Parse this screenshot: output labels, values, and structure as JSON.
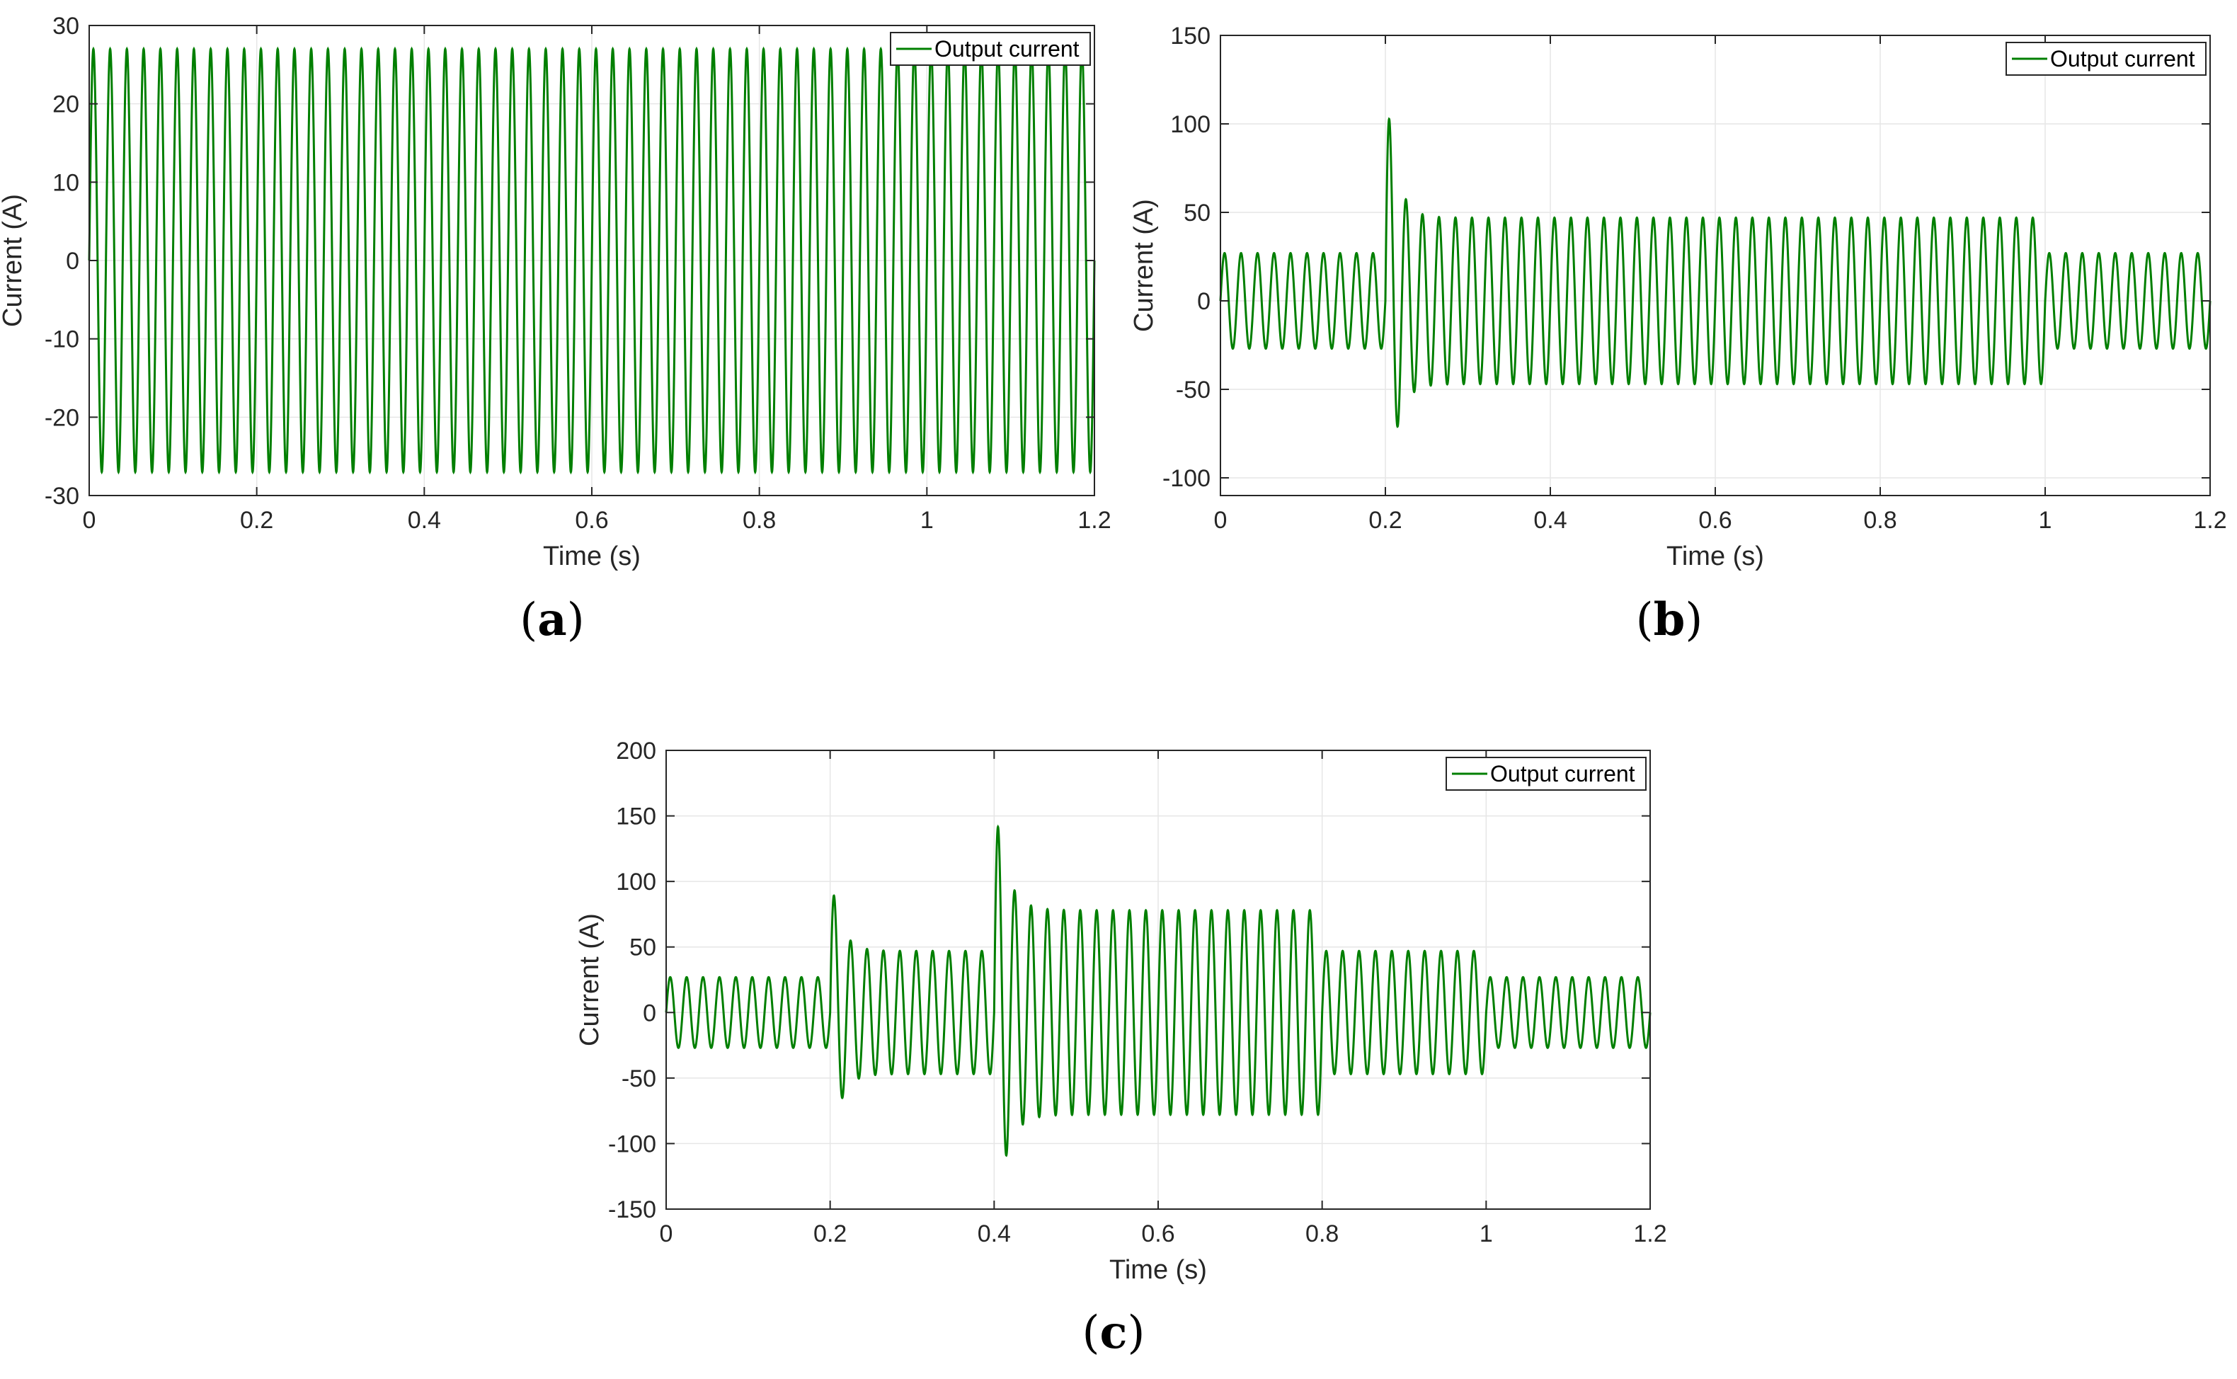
{
  "chart_data": [
    {
      "id": "a",
      "type": "line",
      "caption": {
        "open": "(",
        "letter": "a",
        "close": ")"
      },
      "xlabel": "Time (s)",
      "ylabel": "Current (A)",
      "xlim": [
        0,
        1.2
      ],
      "ylim": [
        -30,
        30
      ],
      "xticks": [
        0,
        0.2,
        0.4,
        0.6,
        0.8,
        1,
        1.2
      ],
      "xtick_labels": [
        "0",
        "0.2",
        "0.4",
        "0.6",
        "0.8",
        "1",
        "1.2"
      ],
      "yticks": [
        30,
        20,
        10,
        0,
        -10,
        -20,
        -30
      ],
      "ytick_labels": [
        "30",
        "20",
        "10",
        "0",
        "-10",
        "-20",
        "-30"
      ],
      "grid": true,
      "legend": {
        "label": "Output current",
        "position": "top-right"
      },
      "color": "#007f00",
      "frequency_hz": 50,
      "series": [
        {
          "name": "Output current",
          "segments": [
            {
              "start": 0,
              "end": 1.2,
              "amplitude": 27
            }
          ],
          "transients": []
        }
      ]
    },
    {
      "id": "b",
      "type": "line",
      "caption": {
        "open": "(",
        "letter": "b",
        "close": ")"
      },
      "xlabel": "Time (s)",
      "ylabel": "Current (A)",
      "xlim": [
        0,
        1.2
      ],
      "ylim": [
        -110,
        150
      ],
      "xticks": [
        0,
        0.2,
        0.4,
        0.6,
        0.8,
        1,
        1.2
      ],
      "xtick_labels": [
        "0",
        "0.2",
        "0.4",
        "0.6",
        "0.8",
        "1",
        "1.2"
      ],
      "yticks": [
        150,
        100,
        50,
        0,
        -50,
        -100
      ],
      "ytick_labels": [
        "150",
        "100",
        "50",
        "0",
        "-50",
        "-100"
      ],
      "grid": true,
      "legend": {
        "label": "Output current",
        "position": "top-right"
      },
      "color": "#007f00",
      "frequency_hz": 50,
      "series": [
        {
          "name": "Output current",
          "segments": [
            {
              "start": 0,
              "end": 0.2,
              "amplitude": 27
            },
            {
              "start": 0.2,
              "end": 1.0,
              "amplitude": 47
            },
            {
              "start": 1.0,
              "end": 1.2,
              "amplitude": 27
            }
          ],
          "transients": [
            {
              "at": 0.2,
              "extra": 83,
              "decay": 0.012
            }
          ]
        }
      ]
    },
    {
      "id": "c",
      "type": "line",
      "caption": {
        "open": "(",
        "letter": "c",
        "close": ")"
      },
      "xlabel": "Time (s)",
      "ylabel": "Current (A)",
      "xlim": [
        0,
        1.2
      ],
      "ylim": [
        -150,
        200
      ],
      "xticks": [
        0,
        0.2,
        0.4,
        0.6,
        0.8,
        1,
        1.2
      ],
      "xtick_labels": [
        "0",
        "0.2",
        "0.4",
        "0.6",
        "0.8",
        "1",
        "1.2"
      ],
      "yticks": [
        200,
        150,
        100,
        50,
        0,
        -50,
        -100,
        -150
      ],
      "ytick_labels": [
        "200",
        "150",
        "100",
        "50",
        "0",
        "-50",
        "-100",
        "-150"
      ],
      "grid": true,
      "legend": {
        "label": "Output current",
        "position": "top-right"
      },
      "color": "#007f00",
      "frequency_hz": 50,
      "series": [
        {
          "name": "Output current",
          "segments": [
            {
              "start": 0,
              "end": 0.2,
              "amplitude": 27
            },
            {
              "start": 0.2,
              "end": 0.4,
              "amplitude": 47
            },
            {
              "start": 0.4,
              "end": 0.8,
              "amplitude": 78
            },
            {
              "start": 0.8,
              "end": 1.0,
              "amplitude": 47
            },
            {
              "start": 1.0,
              "end": 1.2,
              "amplitude": 27
            }
          ],
          "transients": [
            {
              "at": 0.2,
              "extra": 63,
              "decay": 0.012
            },
            {
              "at": 0.4,
              "extra": 90,
              "decay": 0.014
            }
          ]
        }
      ]
    }
  ]
}
